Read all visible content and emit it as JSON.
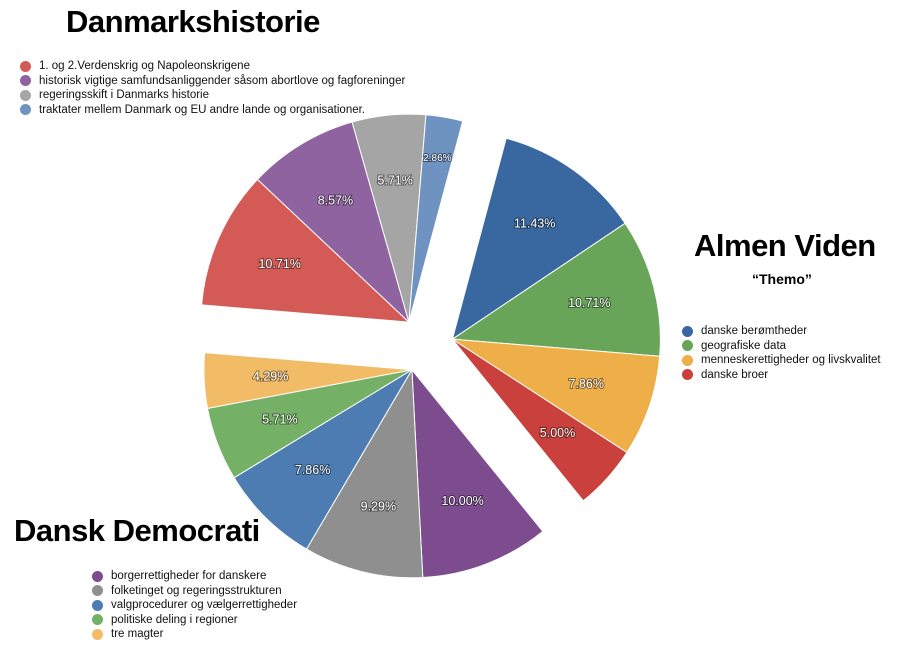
{
  "chart_data": {
    "type": "pie",
    "groups": [
      {
        "title": "Danmarkshistorie",
        "subtitle": "",
        "slices": [
          {
            "label": "1. og 2.Verdenskrig og Napoleonskrigene",
            "value": 10.71,
            "text": "10.71%",
            "color": "#d45a56"
          },
          {
            "label": "historisk vigtige samfundsanliggender såsom abortlove og fagforeninger",
            "value": 8.57,
            "text": "8.57%",
            "color": "#8f62a0"
          },
          {
            "label": "regeringsskift i Danmarks historie",
            "value": 5.71,
            "text": "5.71%",
            "color": "#a5a5a5"
          },
          {
            "label": "traktater mellem Danmark og EU andre lande og organisationer.",
            "value": 2.86,
            "text": "2.86%",
            "color": "#6e93c1"
          }
        ]
      },
      {
        "title": "Almen Viden",
        "subtitle": "“Themo”",
        "slices": [
          {
            "label": "danske berømtheder",
            "value": 11.43,
            "text": "11.43%",
            "color": "#38689f"
          },
          {
            "label": "geografiske data",
            "value": 10.71,
            "text": "10.71%",
            "color": "#68a559"
          },
          {
            "label": "menneskerettigheder og livskvalitet",
            "value": 7.86,
            "text": "7.86%",
            "color": "#eeae48"
          },
          {
            "label": "danske broer",
            "value": 5.0,
            "text": "5.00%",
            "color": "#c9403c"
          }
        ]
      },
      {
        "title": "Dansk Democrati",
        "subtitle": "",
        "slices": [
          {
            "label": "borgerrettigheder for danskere",
            "value": 10.0,
            "text": "10.00%",
            "color": "#7c4c8e"
          },
          {
            "label": "folketinget og regeringsstrukturen",
            "value": 9.29,
            "text": "9.29%",
            "color": "#8f8f8f"
          },
          {
            "label": "valgprocedurer og vælgerrettigheder",
            "value": 7.86,
            "text": "7.86%",
            "color": "#4c7cb1"
          },
          {
            "label": "politiske deling i regioner",
            "value": 5.71,
            "text": "5.71%",
            "color": "#74b066"
          },
          {
            "label": "tre magter",
            "value": 4.29,
            "text": "4.29%",
            "color": "#f2bb66"
          }
        ]
      }
    ]
  }
}
